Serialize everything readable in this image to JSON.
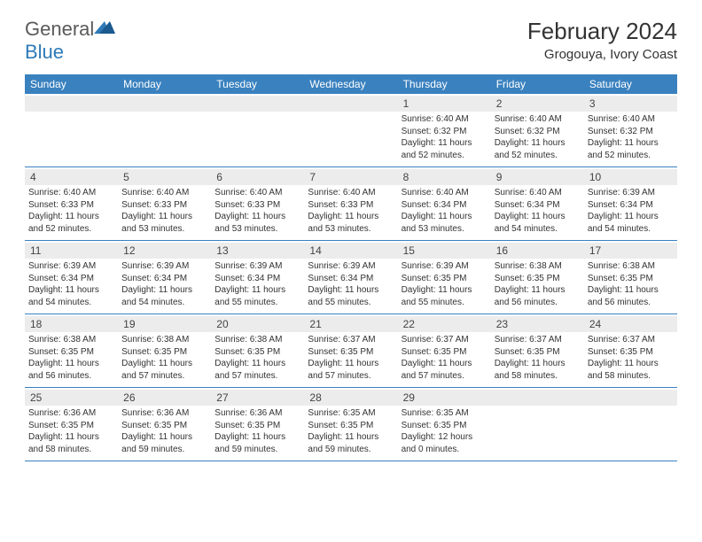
{
  "logo": {
    "text1": "General",
    "text2": "Blue"
  },
  "title": "February 2024",
  "location": "Grogouya, Ivory Coast",
  "colors": {
    "header_bg": "#3a81bf",
    "header_text": "#ffffff",
    "daynum_bg": "#ececec",
    "border": "#3a81bf",
    "logo_gray": "#5a5a5a",
    "logo_blue": "#2e7ab8"
  },
  "weekdays": [
    "Sunday",
    "Monday",
    "Tuesday",
    "Wednesday",
    "Thursday",
    "Friday",
    "Saturday"
  ],
  "days": [
    {
      "n": "",
      "empty": true
    },
    {
      "n": "",
      "empty": true
    },
    {
      "n": "",
      "empty": true
    },
    {
      "n": "",
      "empty": true
    },
    {
      "n": "1",
      "sunrise": "Sunrise: 6:40 AM",
      "sunset": "Sunset: 6:32 PM",
      "daylight": "Daylight: 11 hours and 52 minutes."
    },
    {
      "n": "2",
      "sunrise": "Sunrise: 6:40 AM",
      "sunset": "Sunset: 6:32 PM",
      "daylight": "Daylight: 11 hours and 52 minutes."
    },
    {
      "n": "3",
      "sunrise": "Sunrise: 6:40 AM",
      "sunset": "Sunset: 6:32 PM",
      "daylight": "Daylight: 11 hours and 52 minutes."
    },
    {
      "n": "4",
      "sunrise": "Sunrise: 6:40 AM",
      "sunset": "Sunset: 6:33 PM",
      "daylight": "Daylight: 11 hours and 52 minutes."
    },
    {
      "n": "5",
      "sunrise": "Sunrise: 6:40 AM",
      "sunset": "Sunset: 6:33 PM",
      "daylight": "Daylight: 11 hours and 53 minutes."
    },
    {
      "n": "6",
      "sunrise": "Sunrise: 6:40 AM",
      "sunset": "Sunset: 6:33 PM",
      "daylight": "Daylight: 11 hours and 53 minutes."
    },
    {
      "n": "7",
      "sunrise": "Sunrise: 6:40 AM",
      "sunset": "Sunset: 6:33 PM",
      "daylight": "Daylight: 11 hours and 53 minutes."
    },
    {
      "n": "8",
      "sunrise": "Sunrise: 6:40 AM",
      "sunset": "Sunset: 6:34 PM",
      "daylight": "Daylight: 11 hours and 53 minutes."
    },
    {
      "n": "9",
      "sunrise": "Sunrise: 6:40 AM",
      "sunset": "Sunset: 6:34 PM",
      "daylight": "Daylight: 11 hours and 54 minutes."
    },
    {
      "n": "10",
      "sunrise": "Sunrise: 6:39 AM",
      "sunset": "Sunset: 6:34 PM",
      "daylight": "Daylight: 11 hours and 54 minutes."
    },
    {
      "n": "11",
      "sunrise": "Sunrise: 6:39 AM",
      "sunset": "Sunset: 6:34 PM",
      "daylight": "Daylight: 11 hours and 54 minutes."
    },
    {
      "n": "12",
      "sunrise": "Sunrise: 6:39 AM",
      "sunset": "Sunset: 6:34 PM",
      "daylight": "Daylight: 11 hours and 54 minutes."
    },
    {
      "n": "13",
      "sunrise": "Sunrise: 6:39 AM",
      "sunset": "Sunset: 6:34 PM",
      "daylight": "Daylight: 11 hours and 55 minutes."
    },
    {
      "n": "14",
      "sunrise": "Sunrise: 6:39 AM",
      "sunset": "Sunset: 6:34 PM",
      "daylight": "Daylight: 11 hours and 55 minutes."
    },
    {
      "n": "15",
      "sunrise": "Sunrise: 6:39 AM",
      "sunset": "Sunset: 6:35 PM",
      "daylight": "Daylight: 11 hours and 55 minutes."
    },
    {
      "n": "16",
      "sunrise": "Sunrise: 6:38 AM",
      "sunset": "Sunset: 6:35 PM",
      "daylight": "Daylight: 11 hours and 56 minutes."
    },
    {
      "n": "17",
      "sunrise": "Sunrise: 6:38 AM",
      "sunset": "Sunset: 6:35 PM",
      "daylight": "Daylight: 11 hours and 56 minutes."
    },
    {
      "n": "18",
      "sunrise": "Sunrise: 6:38 AM",
      "sunset": "Sunset: 6:35 PM",
      "daylight": "Daylight: 11 hours and 56 minutes."
    },
    {
      "n": "19",
      "sunrise": "Sunrise: 6:38 AM",
      "sunset": "Sunset: 6:35 PM",
      "daylight": "Daylight: 11 hours and 57 minutes."
    },
    {
      "n": "20",
      "sunrise": "Sunrise: 6:38 AM",
      "sunset": "Sunset: 6:35 PM",
      "daylight": "Daylight: 11 hours and 57 minutes."
    },
    {
      "n": "21",
      "sunrise": "Sunrise: 6:37 AM",
      "sunset": "Sunset: 6:35 PM",
      "daylight": "Daylight: 11 hours and 57 minutes."
    },
    {
      "n": "22",
      "sunrise": "Sunrise: 6:37 AM",
      "sunset": "Sunset: 6:35 PM",
      "daylight": "Daylight: 11 hours and 57 minutes."
    },
    {
      "n": "23",
      "sunrise": "Sunrise: 6:37 AM",
      "sunset": "Sunset: 6:35 PM",
      "daylight": "Daylight: 11 hours and 58 minutes."
    },
    {
      "n": "24",
      "sunrise": "Sunrise: 6:37 AM",
      "sunset": "Sunset: 6:35 PM",
      "daylight": "Daylight: 11 hours and 58 minutes."
    },
    {
      "n": "25",
      "sunrise": "Sunrise: 6:36 AM",
      "sunset": "Sunset: 6:35 PM",
      "daylight": "Daylight: 11 hours and 58 minutes."
    },
    {
      "n": "26",
      "sunrise": "Sunrise: 6:36 AM",
      "sunset": "Sunset: 6:35 PM",
      "daylight": "Daylight: 11 hours and 59 minutes."
    },
    {
      "n": "27",
      "sunrise": "Sunrise: 6:36 AM",
      "sunset": "Sunset: 6:35 PM",
      "daylight": "Daylight: 11 hours and 59 minutes."
    },
    {
      "n": "28",
      "sunrise": "Sunrise: 6:35 AM",
      "sunset": "Sunset: 6:35 PM",
      "daylight": "Daylight: 11 hours and 59 minutes."
    },
    {
      "n": "29",
      "sunrise": "Sunrise: 6:35 AM",
      "sunset": "Sunset: 6:35 PM",
      "daylight": "Daylight: 12 hours and 0 minutes."
    },
    {
      "n": "",
      "empty": true
    },
    {
      "n": "",
      "empty": true
    }
  ]
}
